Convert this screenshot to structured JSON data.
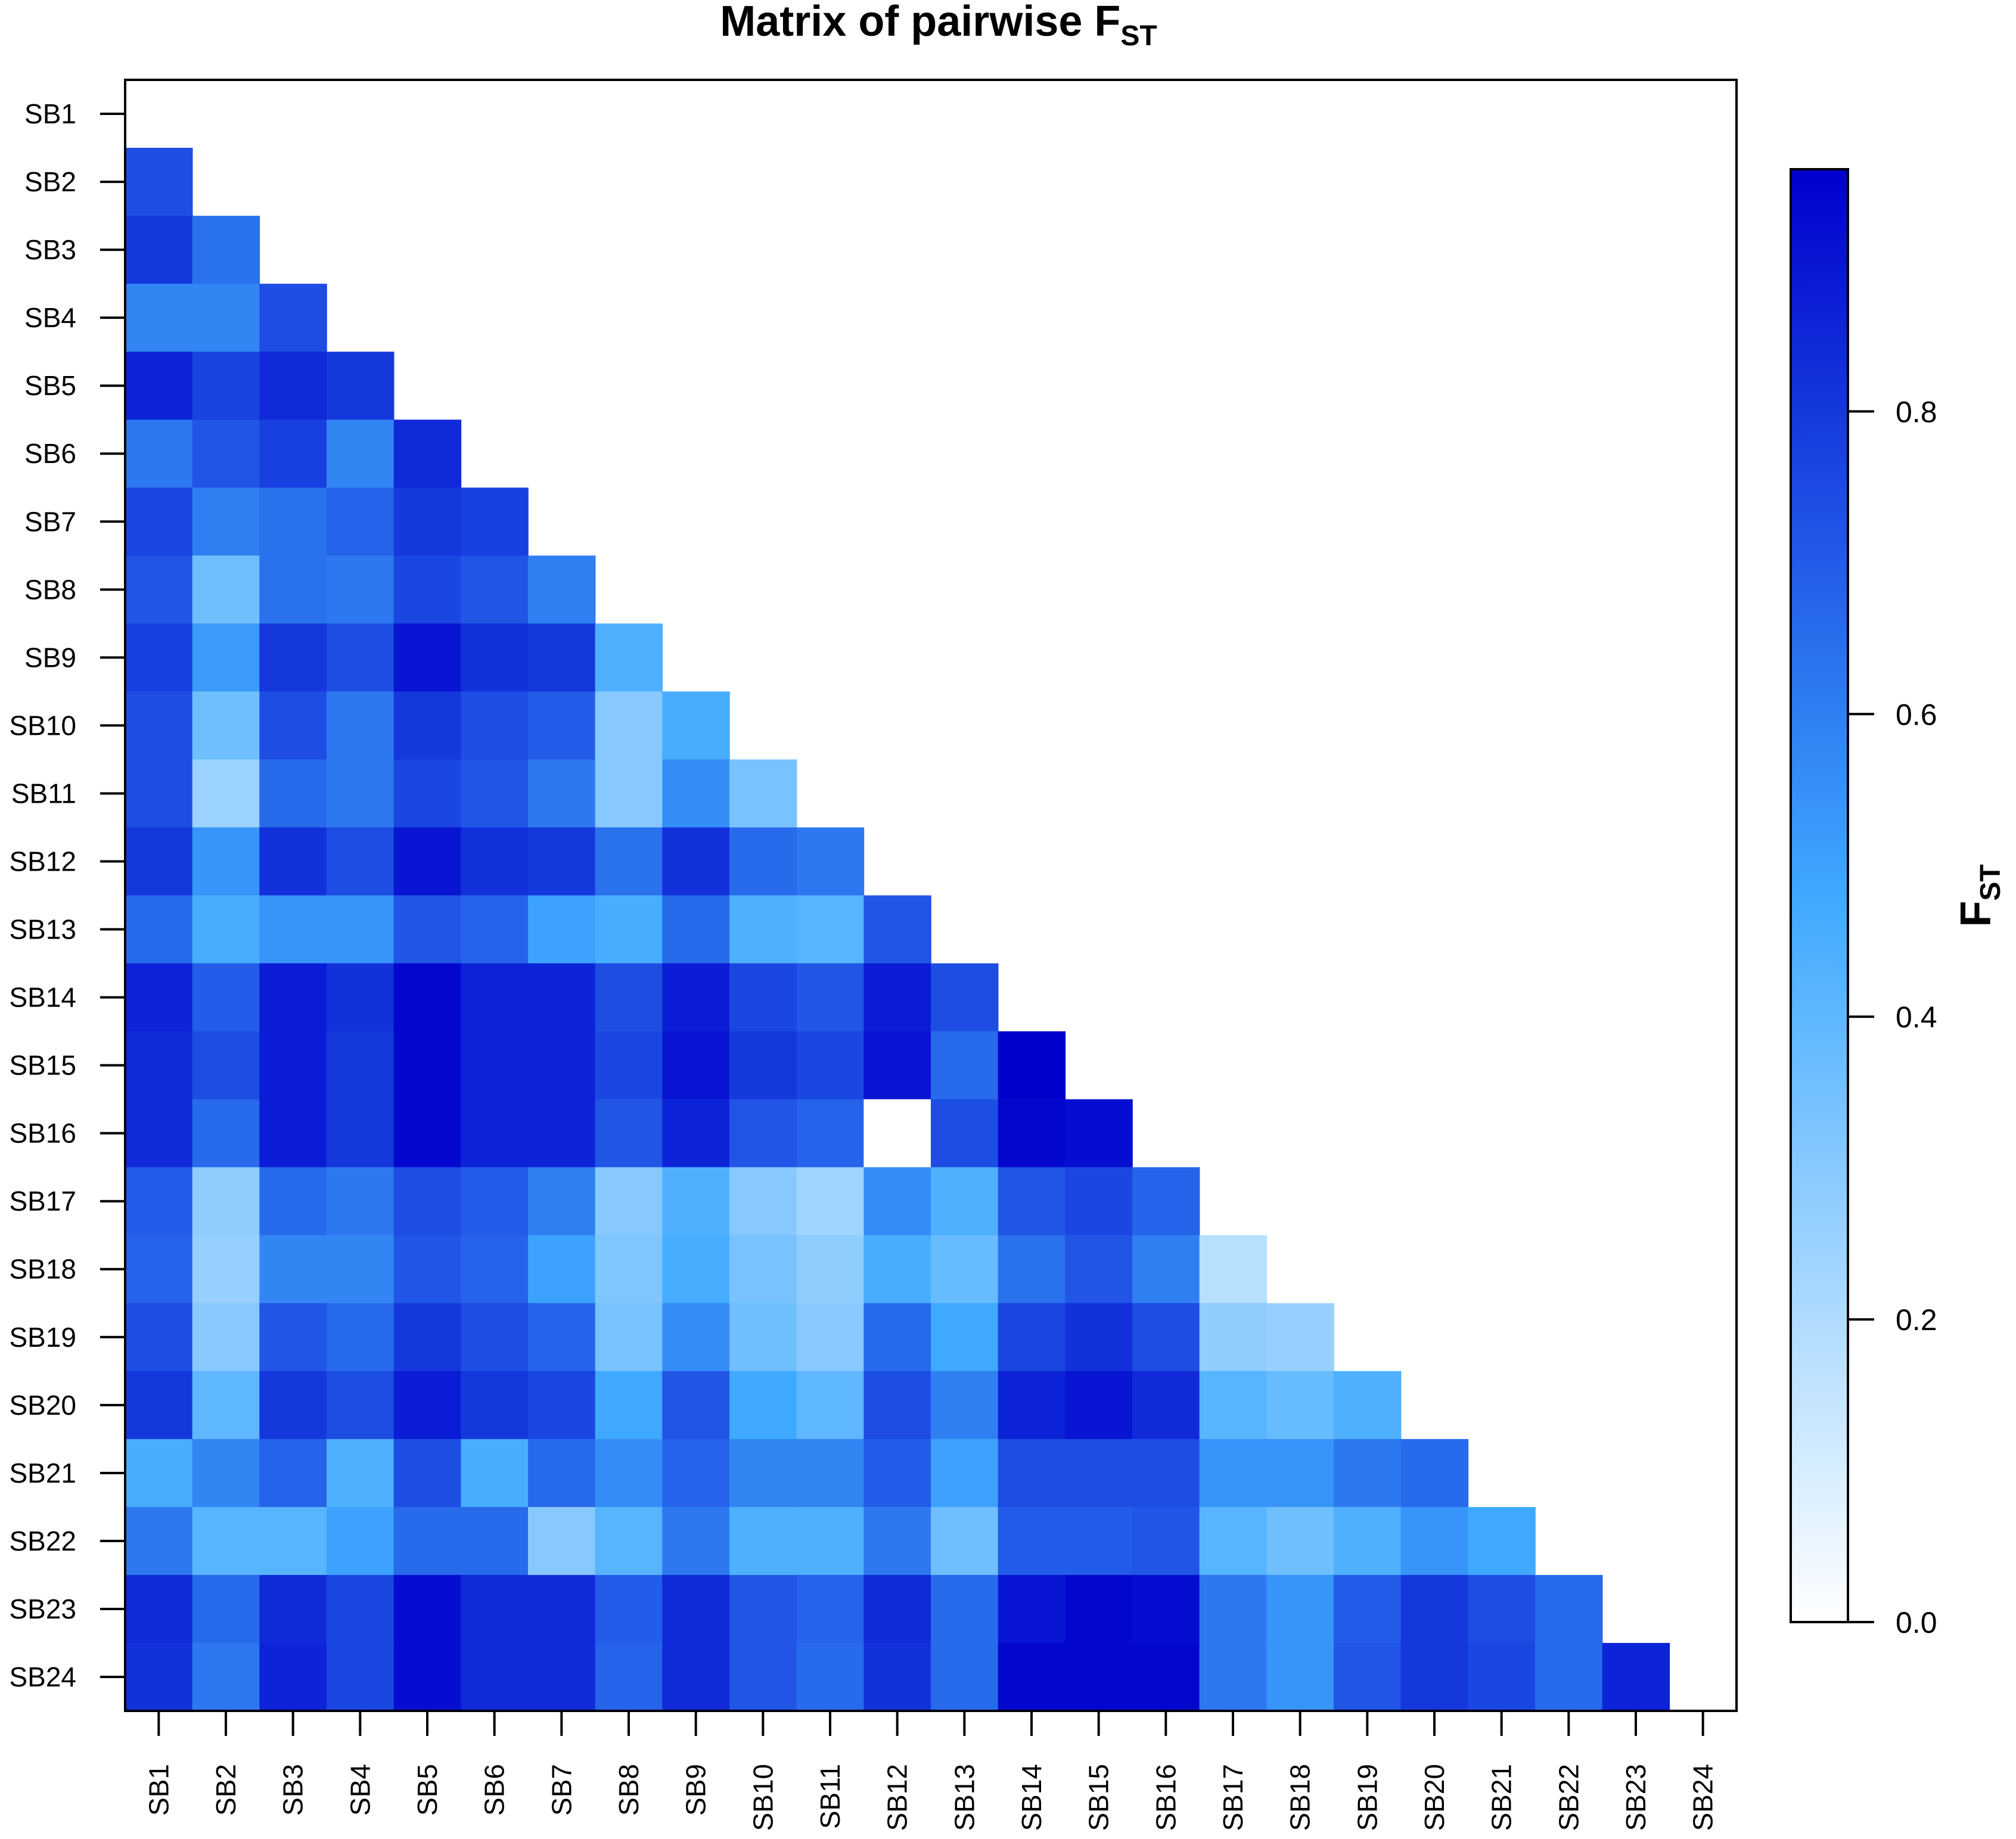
{
  "chart_data": {
    "type": "heatmap",
    "title_main": "Matrix of pairwise F",
    "title_sub": "ST",
    "colorbar_label_main": "F",
    "colorbar_label_sub": "ST",
    "labels": [
      "SB1",
      "SB2",
      "SB3",
      "SB4",
      "SB5",
      "SB6",
      "SB7",
      "SB8",
      "SB9",
      "SB10",
      "SB11",
      "SB12",
      "SB13",
      "SB14",
      "SB15",
      "SB16",
      "SB17",
      "SB18",
      "SB19",
      "SB20",
      "SB21",
      "SB22",
      "SB23",
      "SB24"
    ],
    "colorbar": {
      "min": 0.0,
      "max": 0.96,
      "ticks": [
        0.0,
        0.2,
        0.4,
        0.6,
        0.8
      ],
      "tick_labels": [
        "0.0",
        "0.2",
        "0.4",
        "0.6",
        "0.8"
      ],
      "color_low": "#ffffff",
      "color_mid": "#3fa9ff",
      "color_high": "#0000cc"
    },
    "matrix_lower": [
      [],
      [
        0.74
      ],
      [
        0.8,
        0.64
      ],
      [
        0.58,
        0.58,
        0.74
      ],
      [
        0.86,
        0.77,
        0.84,
        0.8
      ],
      [
        0.62,
        0.72,
        0.78,
        0.58,
        0.84
      ],
      [
        0.76,
        0.6,
        0.64,
        0.68,
        0.8,
        0.78
      ],
      [
        0.72,
        0.36,
        0.64,
        0.62,
        0.76,
        0.72,
        0.6
      ],
      [
        0.78,
        0.52,
        0.8,
        0.74,
        0.9,
        0.82,
        0.8,
        0.44
      ],
      [
        0.74,
        0.36,
        0.74,
        0.62,
        0.8,
        0.74,
        0.7,
        0.3,
        0.46
      ],
      [
        0.74,
        0.25,
        0.66,
        0.62,
        0.76,
        0.72,
        0.62,
        0.3,
        0.56,
        0.34
      ],
      [
        0.8,
        0.54,
        0.82,
        0.74,
        0.9,
        0.82,
        0.8,
        0.64,
        0.82,
        0.66,
        0.62
      ],
      [
        0.66,
        0.46,
        0.54,
        0.54,
        0.72,
        0.68,
        0.5,
        0.46,
        0.66,
        0.44,
        0.42,
        0.72
      ],
      [
        0.86,
        0.7,
        0.88,
        0.82,
        0.94,
        0.86,
        0.86,
        0.74,
        0.88,
        0.76,
        0.72,
        0.88,
        0.74
      ],
      [
        0.84,
        0.74,
        0.88,
        0.8,
        0.94,
        0.86,
        0.86,
        0.76,
        0.9,
        0.8,
        0.76,
        0.9,
        0.66,
        0.96
      ],
      [
        0.84,
        0.66,
        0.88,
        0.8,
        0.94,
        0.86,
        0.86,
        0.72,
        0.86,
        0.72,
        0.68,
        0.0,
        0.74,
        0.94,
        0.92
      ],
      [
        0.7,
        0.28,
        0.66,
        0.62,
        0.74,
        0.7,
        0.6,
        0.3,
        0.44,
        0.3,
        0.24,
        0.56,
        0.44,
        0.72,
        0.76,
        0.68
      ],
      [
        0.68,
        0.26,
        0.58,
        0.58,
        0.72,
        0.68,
        0.5,
        0.32,
        0.46,
        0.34,
        0.28,
        0.46,
        0.38,
        0.64,
        0.72,
        0.6,
        0.18
      ],
      [
        0.74,
        0.3,
        0.72,
        0.66,
        0.8,
        0.74,
        0.68,
        0.34,
        0.56,
        0.36,
        0.3,
        0.66,
        0.48,
        0.76,
        0.82,
        0.74,
        0.28,
        0.26
      ],
      [
        0.8,
        0.4,
        0.8,
        0.74,
        0.88,
        0.8,
        0.76,
        0.48,
        0.72,
        0.48,
        0.4,
        0.74,
        0.6,
        0.86,
        0.9,
        0.84,
        0.42,
        0.38,
        0.44
      ],
      [
        0.46,
        0.58,
        0.68,
        0.44,
        0.74,
        0.46,
        0.66,
        0.56,
        0.68,
        0.58,
        0.58,
        0.7,
        0.5,
        0.74,
        0.74,
        0.74,
        0.54,
        0.54,
        0.62,
        0.66
      ],
      [
        0.62,
        0.42,
        0.42,
        0.5,
        0.66,
        0.66,
        0.3,
        0.42,
        0.62,
        0.44,
        0.44,
        0.62,
        0.36,
        0.7,
        0.7,
        0.72,
        0.42,
        0.36,
        0.44,
        0.54,
        0.48
      ],
      [
        0.84,
        0.66,
        0.84,
        0.76,
        0.92,
        0.84,
        0.84,
        0.7,
        0.84,
        0.72,
        0.68,
        0.84,
        0.66,
        0.9,
        0.94,
        0.92,
        0.62,
        0.54,
        0.7,
        0.8,
        0.74,
        0.66
      ],
      [
        0.82,
        0.62,
        0.86,
        0.76,
        0.92,
        0.84,
        0.84,
        0.68,
        0.84,
        0.72,
        0.66,
        0.82,
        0.66,
        0.94,
        0.94,
        0.94,
        0.62,
        0.54,
        0.72,
        0.8,
        0.76,
        0.66,
        0.86
      ]
    ]
  }
}
